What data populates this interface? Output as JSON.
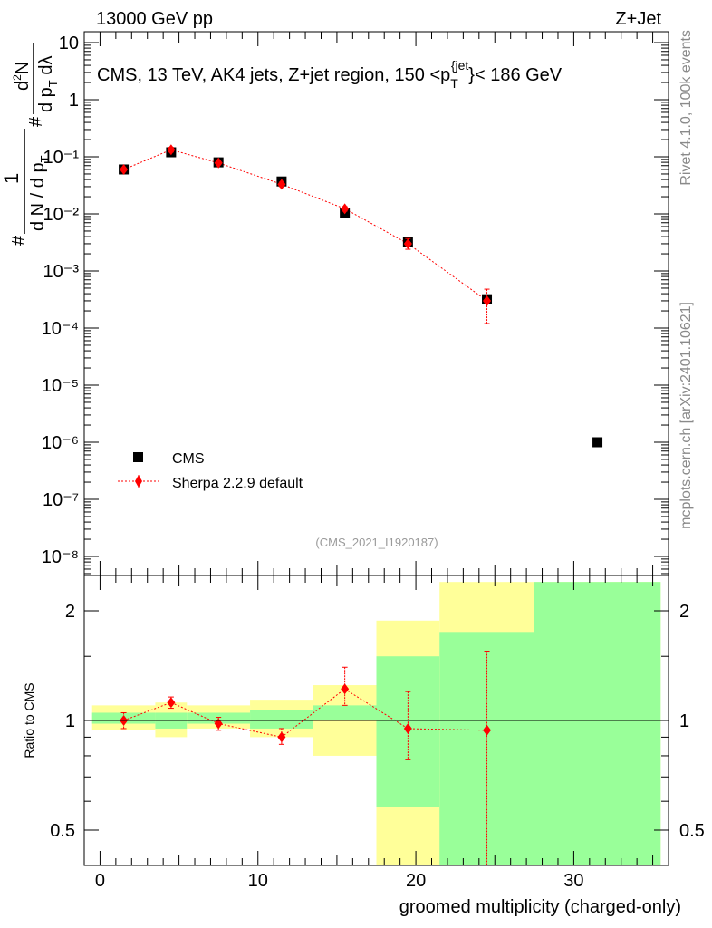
{
  "header": {
    "left": "13000 GeV pp",
    "right": "Z+Jet"
  },
  "side_text": {
    "rivet": "Rivet 4.1.0,  100k events",
    "mcplots": "mcplots.cern.ch [arXiv:2401.10621]"
  },
  "colors": {
    "cms": "#000000",
    "sherpa": "#ff0000",
    "band_green": "#99ff99",
    "band_yellow": "#ffff99"
  },
  "chart_data": [
    {
      "type": "scatter",
      "panel": "main",
      "title": "CMS, 13 TeV, AK4 jets, Z+jet region, 150 <p_T^{jet}< 186 GeV",
      "title_parts": {
        "prefix": "CMS, 13 TeV, AK4 jets, Z+jet region, 150 <p",
        "sub": "T",
        "sup": "{jet",
        "suffix": "}< 186 GeV"
      },
      "ylabel": "1/(dN/dp_T) d²N/(dp_T dλ)",
      "ylabel_parts": {
        "hash": "#",
        "one": "1",
        "den": "d N / d p",
        "den_sub": "T",
        "num": "d",
        "num_sup": "2",
        "num_rest": "N",
        "den2": "d p",
        "den2_sub": "T",
        "den2_rest": " dλ"
      },
      "xlim": [
        -1,
        36
      ],
      "yscale": "log",
      "ylim_exp": [
        -8.5,
        1.5
      ],
      "y_tick_labels": [
        "10⁻⁸",
        "10⁻⁷",
        "10⁻⁶",
        "10⁻⁵",
        "10⁻⁴",
        "10⁻³",
        "10⁻²",
        "10⁻¹",
        "1",
        "10"
      ],
      "y_tick_exps": [
        -8,
        -7,
        -6,
        -5,
        -4,
        -3,
        -2,
        -1,
        0,
        1
      ],
      "watermark": "(CMS_2021_I1920187)",
      "legend_position": "lower-left",
      "series": [
        {
          "name": "CMS",
          "marker": "square",
          "x": [
            1.5,
            4.5,
            7.5,
            11.5,
            15.5,
            19.5,
            24.5,
            31.5
          ],
          "y": [
            0.06,
            0.12,
            0.08,
            0.037,
            0.0105,
            0.0032,
            0.00032,
            1e-06
          ]
        },
        {
          "name": "Sherpa 2.2.9 default",
          "marker": "diamond",
          "line": "dotted",
          "x": [
            1.5,
            4.5,
            7.5,
            11.5,
            15.5,
            19.5,
            24.5
          ],
          "y": [
            0.06,
            0.133,
            0.078,
            0.033,
            0.0123,
            0.003,
            0.0003
          ],
          "y_low": [
            0.056,
            0.121,
            0.073,
            0.03,
            0.0112,
            0.0024,
            0.00012
          ],
          "y_high": [
            0.064,
            0.146,
            0.083,
            0.036,
            0.0134,
            0.0037,
            0.00048
          ]
        }
      ]
    },
    {
      "type": "scatter",
      "panel": "ratio",
      "ylabel": "Ratio to CMS",
      "xlabel": "groomed multiplicity (charged-only)",
      "xlim": [
        -1,
        36
      ],
      "yscale": "log",
      "ylim": [
        0.415,
        2.4
      ],
      "x_ticks": [
        0,
        10,
        20,
        30
      ],
      "x_tick_labels": [
        "0",
        "10",
        "20",
        "30"
      ],
      "y_ticks": [
        0.5,
        1,
        2
      ],
      "y_tick_labels": [
        "0.5",
        "1",
        "2"
      ],
      "reference_line": 1,
      "bands": {
        "x_edges": [
          -0.5,
          3.5,
          5.5,
          9.5,
          13.5,
          17.5,
          21.5,
          27.5,
          35.5
        ],
        "green_low": [
          0.98,
          0.95,
          0.98,
          0.95,
          1.0,
          0.4,
          0.4,
          0.4
        ],
        "green_high": [
          1.05,
          1.05,
          1.05,
          1.07,
          1.1,
          1.5,
          1.75,
          2.4
        ],
        "yellow_low": [
          0.94,
          0.9,
          0.95,
          0.9,
          0.8,
          0.4,
          0.4,
          0.4
        ],
        "yellow_high": [
          1.1,
          1.12,
          1.1,
          1.14,
          1.25,
          1.88,
          2.4,
          2.4
        ],
        "yellow_hole_low": [
          null,
          null,
          null,
          null,
          null,
          0.58,
          null,
          null
        ],
        "yellow_hole_high": [
          null,
          null,
          null,
          null,
          null,
          1.5,
          null,
          null
        ]
      },
      "series": [
        {
          "name": "Sherpa 2.2.9 default",
          "marker": "diamond",
          "line": "dotted",
          "x": [
            1.5,
            4.5,
            7.5,
            11.5,
            15.5,
            19.5,
            24.5
          ],
          "y": [
            1.0,
            1.12,
            0.98,
            0.9,
            1.22,
            0.95,
            0.94
          ],
          "y_low": [
            0.95,
            1.08,
            0.94,
            0.86,
            1.1,
            0.78,
            0.4
          ],
          "y_high": [
            1.05,
            1.16,
            1.02,
            0.95,
            1.4,
            1.2,
            1.55
          ]
        }
      ]
    }
  ]
}
